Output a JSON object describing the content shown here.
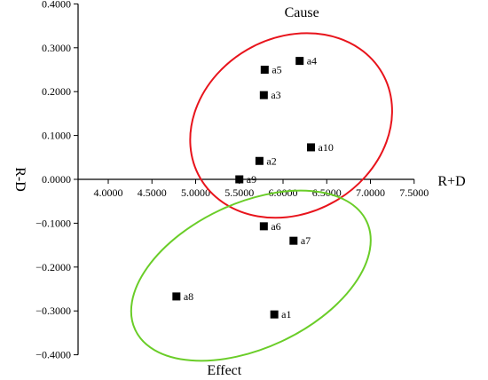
{
  "chart_data": {
    "type": "scatter",
    "xlabel": "R+D",
    "ylabel": "R-D",
    "xlim": [
      3.5,
      7.5
    ],
    "ylim": [
      -0.4,
      0.4
    ],
    "x_ticks": [
      "4.0000",
      "4.5000",
      "5.0000",
      "5.5000",
      "6.0000",
      "6.5000",
      "7.0000",
      "7.5000"
    ],
    "y_ticks": [
      "0.4000",
      "0.3000",
      "0.2000",
      "0.1000",
      "0.0000",
      "−0.1000",
      "−0.2000",
      "−0.3000",
      "−0.4000"
    ],
    "points": [
      {
        "label": "a1",
        "x": 5.9,
        "y": -0.308
      },
      {
        "label": "a2",
        "x": 5.73,
        "y": 0.042
      },
      {
        "label": "a3",
        "x": 5.78,
        "y": 0.192
      },
      {
        "label": "a4",
        "x": 6.19,
        "y": 0.27
      },
      {
        "label": "a5",
        "x": 5.79,
        "y": 0.25
      },
      {
        "label": "a6",
        "x": 5.78,
        "y": -0.107
      },
      {
        "label": "a7",
        "x": 6.12,
        "y": -0.14
      },
      {
        "label": "a8",
        "x": 4.78,
        "y": -0.267
      },
      {
        "label": "a9",
        "x": 5.5,
        "y": 0.0
      },
      {
        "label": "a10",
        "x": 6.32,
        "y": 0.073
      }
    ],
    "groups": [
      {
        "name": "Cause",
        "color": "#e8141c",
        "members": [
          "a2",
          "a3",
          "a4",
          "a5",
          "a9",
          "a10"
        ]
      },
      {
        "name": "Effect",
        "color": "#6acd28",
        "members": [
          "a1",
          "a6",
          "a7",
          "a8"
        ]
      }
    ],
    "grid": false,
    "marker": "square",
    "marker_color": "#000000"
  }
}
